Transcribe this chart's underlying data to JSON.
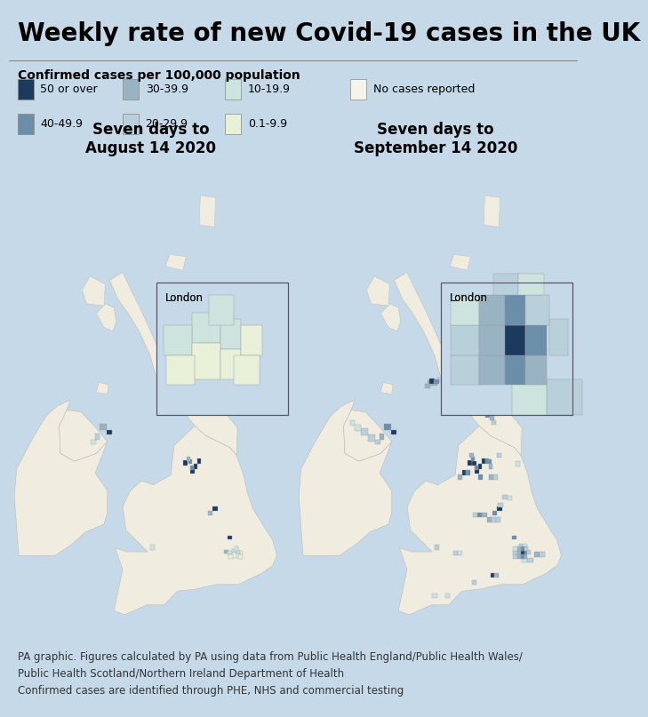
{
  "title": "Weekly rate of new Covid-19 cases in the UK",
  "subtitle": "Confirmed cases per 100,000 population",
  "legend_items": [
    {
      "label": "50 or over",
      "color": "#1b3a5c"
    },
    {
      "label": "40-49.9",
      "color": "#6b8fa8"
    },
    {
      "label": "30-39.9",
      "color": "#9ab3c2"
    },
    {
      "label": "20-29.9",
      "color": "#b8d0da"
    },
    {
      "label": "10-19.9",
      "color": "#cde3de"
    },
    {
      "label": "0.1-9.9",
      "color": "#e8f0d8"
    },
    {
      "label": "No cases reported",
      "color": "#f4f4e8"
    }
  ],
  "map1_title": "Seven days to\nAugust 14 2020",
  "map2_title": "Seven days to\nSeptember 14 2020",
  "background_color": "#c5d9e8",
  "land_default": "#f0ede0",
  "footer_text": "PA graphic. Figures calculated by PA using data from Public Health England/Public Health Wales/\nPublic Health Scotland/Northern Ireland Department of Health\nConfirmed cases are identified through PHE, NHS and commercial testing",
  "title_fontsize": 20,
  "subtitle_fontsize": 10,
  "legend_fontsize": 9,
  "map_title_fontsize": 12,
  "footer_fontsize": 8.5
}
